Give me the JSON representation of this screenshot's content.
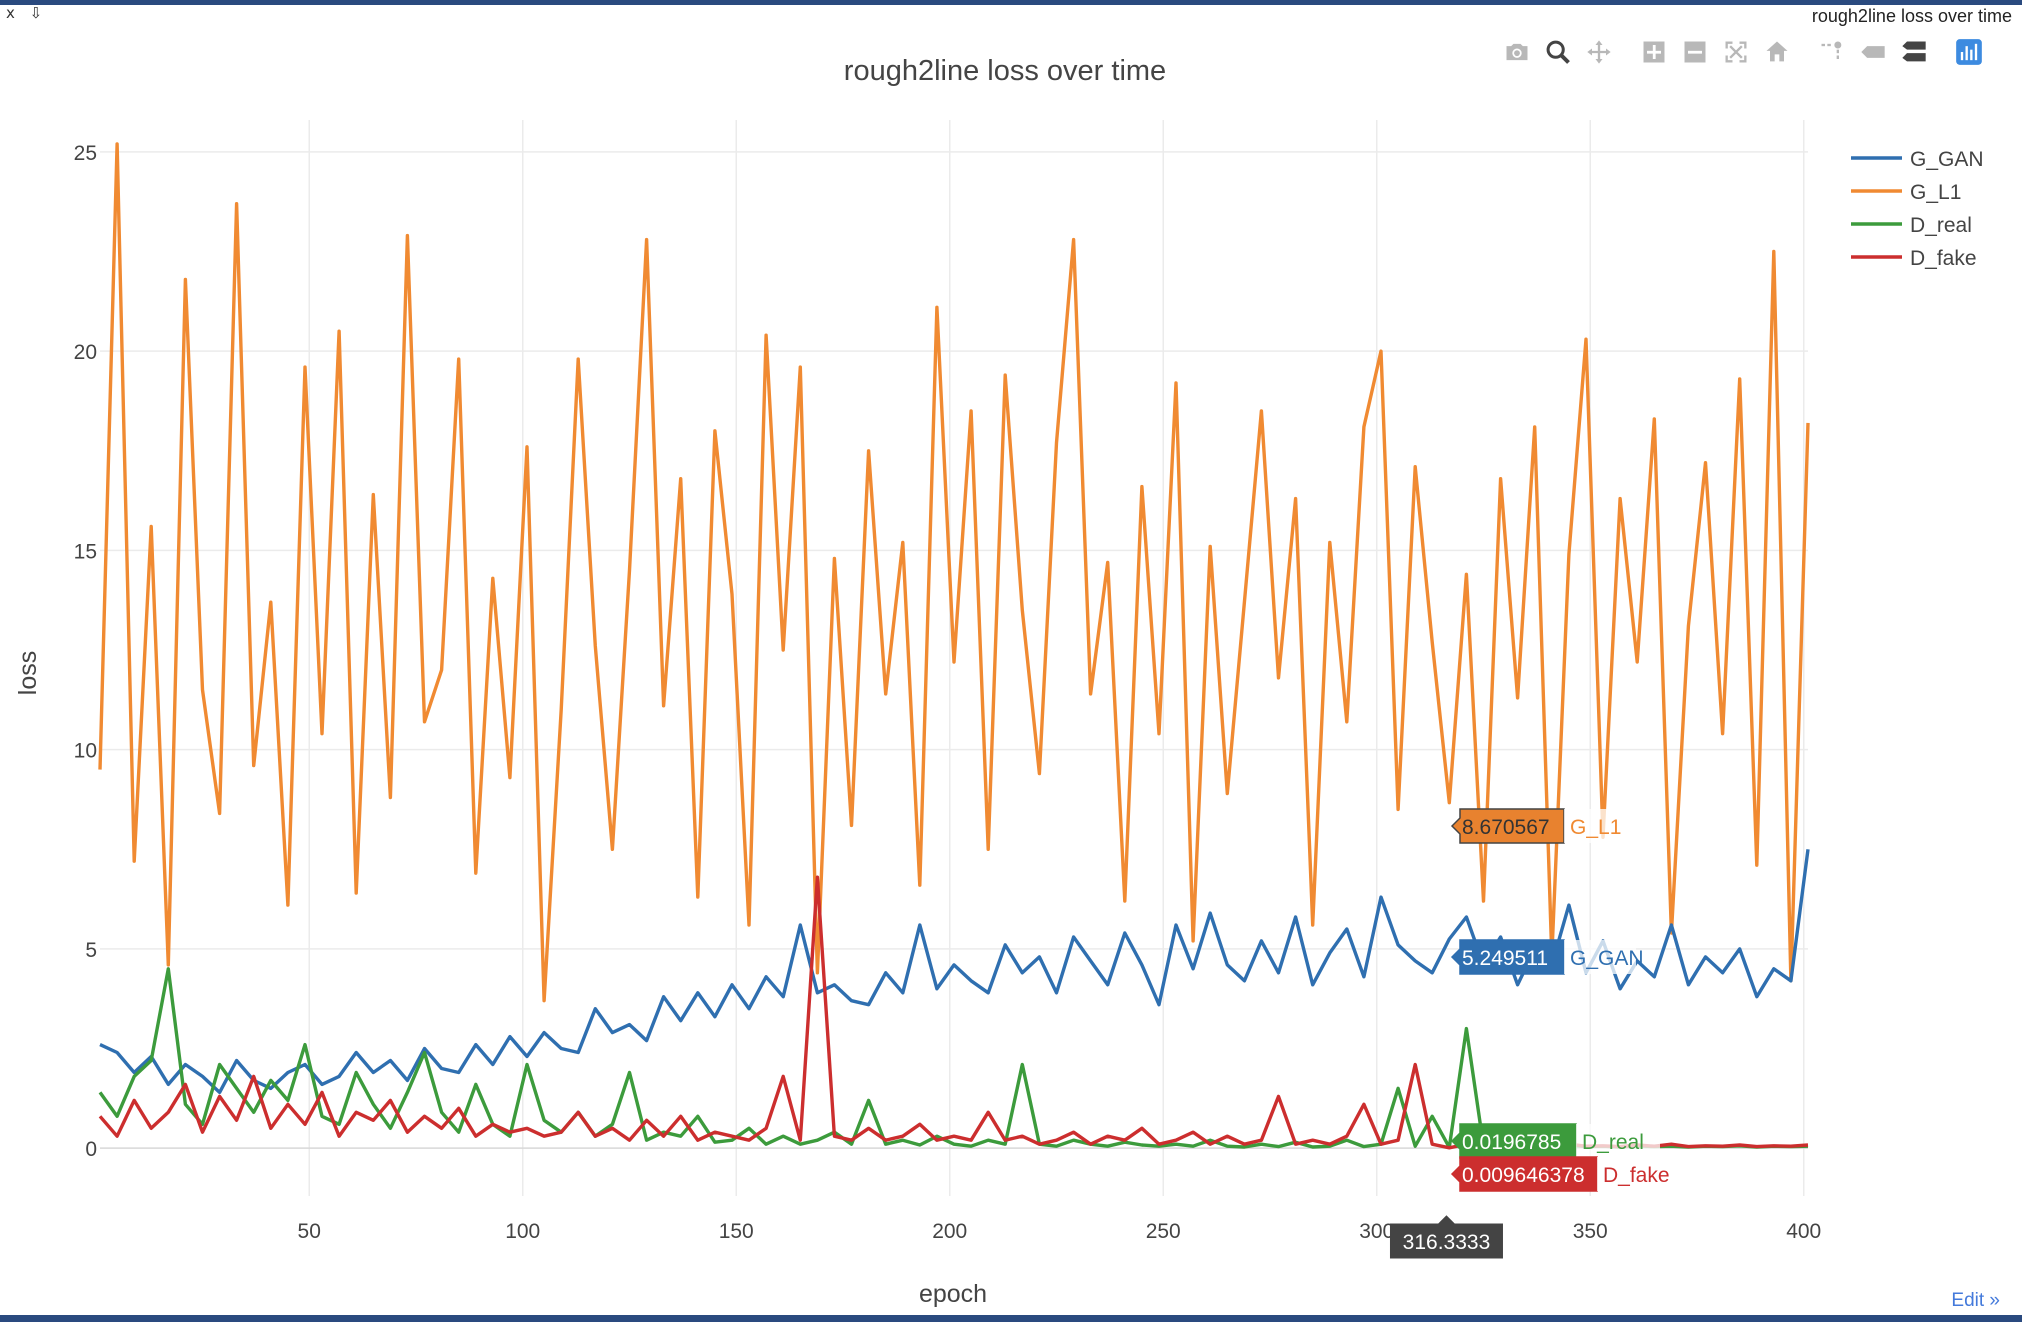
{
  "window": {
    "title": "rough2line loss over time",
    "close_label": "x",
    "download_label": "⇩"
  },
  "modebar": {
    "icons": [
      "camera-icon",
      "zoom-icon",
      "pan-icon",
      "zoom-in-icon",
      "zoom-out-icon",
      "autoscale-icon",
      "home-icon",
      "spike-lines-icon",
      "hover-closest-icon",
      "hover-compare-icon",
      "plotly-logo-icon"
    ]
  },
  "edit_link": "Edit »",
  "hover": {
    "x_label": "316.3333",
    "items": [
      {
        "value": "8.670567",
        "name": "G_L1",
        "y": 8.670567,
        "color": "#f08a32"
      },
      {
        "value": "5.249511",
        "name": "G_GAN",
        "y": 5.249511,
        "color": "#2f6fb0"
      },
      {
        "value": "0.0196785",
        "name": "D_real",
        "y": 0.0196785,
        "color": "#3c9b3c"
      },
      {
        "value": "0.009646378",
        "name": "D_fake",
        "y": 0.009646378,
        "color": "#cc2e2e"
      }
    ]
  },
  "chart_data": {
    "type": "line",
    "title": "rough2line loss over time",
    "xlabel": "epoch",
    "ylabel": "loss",
    "xlim": [
      1,
      401
    ],
    "ylim": [
      -1.2,
      25.8
    ],
    "x_ticks": [
      50,
      100,
      150,
      200,
      250,
      300,
      350,
      400
    ],
    "y_ticks": [
      0,
      5,
      10,
      15,
      20,
      25
    ],
    "grid": true,
    "legend": "top-right",
    "x": [
      1,
      5,
      9,
      13,
      17,
      21,
      25,
      29,
      33,
      37,
      41,
      45,
      49,
      53,
      57,
      61,
      65,
      69,
      73,
      77,
      81,
      85,
      89,
      93,
      97,
      101,
      105,
      109,
      113,
      117,
      121,
      125,
      129,
      133,
      137,
      141,
      145,
      149,
      153,
      157,
      161,
      165,
      169,
      173,
      177,
      181,
      185,
      189,
      193,
      197,
      201,
      205,
      209,
      213,
      217,
      221,
      225,
      229,
      233,
      237,
      241,
      245,
      249,
      253,
      257,
      261,
      265,
      269,
      273,
      277,
      281,
      285,
      289,
      293,
      297,
      301,
      305,
      309,
      313,
      317,
      321,
      325,
      329,
      333,
      337,
      341,
      345,
      349,
      353,
      357,
      361,
      365,
      369,
      373,
      377,
      381,
      385,
      389,
      393,
      397,
      401
    ],
    "series": [
      {
        "name": "G_GAN",
        "color": "#2f6fb0",
        "values": [
          2.6,
          2.4,
          1.9,
          2.3,
          1.6,
          2.1,
          1.8,
          1.4,
          2.2,
          1.7,
          1.5,
          1.9,
          2.1,
          1.6,
          1.8,
          2.4,
          1.9,
          2.2,
          1.7,
          2.5,
          2.0,
          1.9,
          2.6,
          2.1,
          2.8,
          2.3,
          2.9,
          2.5,
          2.4,
          3.5,
          2.9,
          3.1,
          2.7,
          3.8,
          3.2,
          3.9,
          3.3,
          4.1,
          3.5,
          4.3,
          3.8,
          5.6,
          3.9,
          4.1,
          3.7,
          3.6,
          4.4,
          3.9,
          5.6,
          4.0,
          4.6,
          4.2,
          3.9,
          5.1,
          4.4,
          4.8,
          3.9,
          5.3,
          4.7,
          4.1,
          5.4,
          4.6,
          3.6,
          5.6,
          4.5,
          5.9,
          4.6,
          4.2,
          5.2,
          4.4,
          5.8,
          4.1,
          4.9,
          5.5,
          4.3,
          6.3,
          5.1,
          4.7,
          4.4,
          5.25,
          5.8,
          4.6,
          5.3,
          4.1,
          5.0,
          4.6,
          6.1,
          4.4,
          5.2,
          4.0,
          4.7,
          4.3,
          5.6,
          4.1,
          4.8,
          4.4,
          5.0,
          3.8,
          4.5,
          4.2,
          7.5
        ]
      },
      {
        "name": "G_L1",
        "color": "#f08a32",
        "values": [
          9.5,
          25.2,
          7.2,
          15.6,
          4.6,
          21.8,
          11.5,
          8.4,
          23.7,
          9.6,
          13.7,
          6.1,
          19.6,
          10.4,
          20.5,
          6.4,
          16.4,
          8.8,
          22.9,
          10.7,
          12.0,
          19.8,
          6.9,
          14.3,
          9.3,
          17.6,
          3.7,
          11.0,
          19.8,
          12.6,
          7.5,
          14.5,
          22.8,
          11.1,
          16.8,
          6.3,
          18.0,
          13.9,
          5.6,
          20.4,
          12.5,
          19.6,
          4.4,
          14.8,
          8.1,
          17.5,
          11.4,
          15.2,
          6.6,
          21.1,
          12.2,
          18.5,
          7.5,
          19.4,
          13.5,
          9.4,
          17.7,
          22.8,
          11.4,
          14.7,
          6.2,
          16.6,
          10.4,
          19.2,
          5.2,
          15.1,
          8.9,
          13.7,
          18.5,
          11.8,
          16.3,
          5.6,
          15.2,
          10.7,
          18.1,
          20.0,
          8.5,
          17.1,
          12.7,
          8.67,
          14.4,
          6.2,
          16.8,
          11.3,
          18.1,
          4.8,
          14.9,
          20.3,
          7.8,
          16.3,
          12.2,
          18.3,
          5.4,
          13.1,
          17.2,
          10.4,
          19.3,
          7.1,
          22.5,
          4.2,
          18.2
        ]
      },
      {
        "name": "D_real",
        "color": "#3c9b3c",
        "values": [
          1.4,
          0.8,
          1.8,
          2.2,
          4.5,
          1.1,
          0.6,
          2.1,
          1.5,
          0.9,
          1.7,
          1.2,
          2.6,
          0.8,
          0.6,
          1.9,
          1.1,
          0.5,
          1.4,
          2.4,
          0.9,
          0.4,
          1.6,
          0.6,
          0.3,
          2.1,
          0.7,
          0.4,
          0.9,
          0.3,
          0.6,
          1.9,
          0.2,
          0.4,
          0.3,
          0.8,
          0.15,
          0.2,
          0.5,
          0.1,
          0.3,
          0.1,
          0.2,
          0.4,
          0.1,
          1.2,
          0.1,
          0.2,
          0.08,
          0.3,
          0.1,
          0.05,
          0.2,
          0.1,
          2.1,
          0.1,
          0.05,
          0.2,
          0.1,
          0.05,
          0.15,
          0.08,
          0.05,
          0.1,
          0.05,
          0.2,
          0.05,
          0.03,
          0.1,
          0.04,
          0.15,
          0.03,
          0.05,
          0.2,
          0.04,
          0.1,
          1.5,
          0.05,
          0.8,
          0.02,
          3.0,
          0.05,
          0.04,
          0.1,
          0.05,
          0.03,
          0.08,
          0.04,
          0.05,
          0.03,
          0.06,
          0.04,
          0.05,
          0.03,
          0.05,
          0.04,
          0.06,
          0.03,
          0.05,
          0.04,
          0.05
        ]
      },
      {
        "name": "D_fake",
        "color": "#cc2e2e",
        "values": [
          0.8,
          0.3,
          1.2,
          0.5,
          0.9,
          1.6,
          0.4,
          1.3,
          0.7,
          1.8,
          0.5,
          1.1,
          0.6,
          1.4,
          0.3,
          0.9,
          0.7,
          1.2,
          0.4,
          0.8,
          0.5,
          1.0,
          0.3,
          0.6,
          0.4,
          0.5,
          0.3,
          0.4,
          0.9,
          0.3,
          0.5,
          0.2,
          0.7,
          0.3,
          0.8,
          0.2,
          0.4,
          0.3,
          0.2,
          0.5,
          1.8,
          0.2,
          6.8,
          0.3,
          0.2,
          0.5,
          0.2,
          0.3,
          0.6,
          0.2,
          0.3,
          0.2,
          0.9,
          0.2,
          0.3,
          0.1,
          0.2,
          0.4,
          0.1,
          0.3,
          0.2,
          0.5,
          0.1,
          0.2,
          0.4,
          0.1,
          0.3,
          0.1,
          0.2,
          1.3,
          0.1,
          0.2,
          0.1,
          0.3,
          1.1,
          0.1,
          0.2,
          2.1,
          0.1,
          0.01,
          0.1,
          0.05,
          0.1,
          0.05,
          0.08,
          0.04,
          0.1,
          0.05,
          0.06,
          0.04,
          0.08,
          0.05,
          0.1,
          0.04,
          0.06,
          0.05,
          0.08,
          0.04,
          0.06,
          0.05,
          0.08
        ]
      }
    ]
  }
}
